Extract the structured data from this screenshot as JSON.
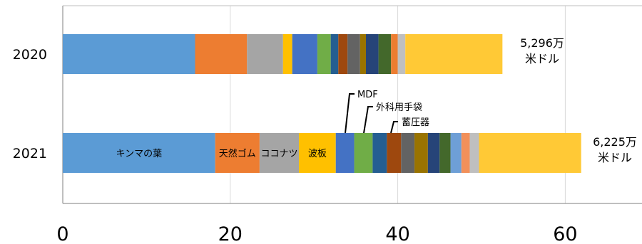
{
  "chart_data": {
    "type": "bar",
    "orientation": "horizontal",
    "stacked": true,
    "categories": [
      "2020",
      "2021"
    ],
    "xlim": [
      0,
      70
    ],
    "x_ticks": [
      "0",
      "20",
      "40",
      "60"
    ],
    "grid": true,
    "segments": [
      {
        "color": "#5b9bd5",
        "values": [
          15.8,
          18.2
        ]
      },
      {
        "color": "#ed7d31",
        "values": [
          6.2,
          5.3
        ]
      },
      {
        "color": "#a5a5a5",
        "values": [
          4.3,
          4.7
        ]
      },
      {
        "color": "#ffc000",
        "values": [
          1.1,
          4.4
        ]
      },
      {
        "color": "#4472c4",
        "values": [
          3.0,
          2.2
        ]
      },
      {
        "color": "#70ad47",
        "values": [
          1.6,
          2.2
        ]
      },
      {
        "color": "#255e91",
        "values": [
          0.9,
          1.7
        ]
      },
      {
        "color": "#9e480e",
        "values": [
          1.1,
          1.7
        ]
      },
      {
        "color": "#636363",
        "values": [
          1.5,
          1.6
        ]
      },
      {
        "color": "#997300",
        "values": [
          0.7,
          1.6
        ]
      },
      {
        "color": "#264478",
        "values": [
          1.5,
          1.4
        ]
      },
      {
        "color": "#43682b",
        "values": [
          1.5,
          1.3
        ]
      },
      {
        "color": "#ed7d31",
        "values": [
          0.8,
          0.0
        ]
      },
      {
        "color": "#6e9fd6",
        "values": [
          0.0,
          1.3
        ]
      },
      {
        "color": "#f2905a",
        "values": [
          0.0,
          1.0
        ]
      },
      {
        "color": "#bfbfbf",
        "values": [
          0.9,
          1.1
        ]
      },
      {
        "color": "#ffc936",
        "values": [
          11.6,
          12.2
        ]
      }
    ],
    "segment_labels": [
      "キンマの葉",
      "天然ゴム",
      "ココナツ",
      "波板"
    ],
    "totals": [
      {
        "line1": "5,296万",
        "line2": "米ドル"
      },
      {
        "line1": "6,225万",
        "line2": "米ドル"
      }
    ],
    "annotations": [
      "MDF",
      "外科用手袋",
      "蓄圧器"
    ]
  }
}
